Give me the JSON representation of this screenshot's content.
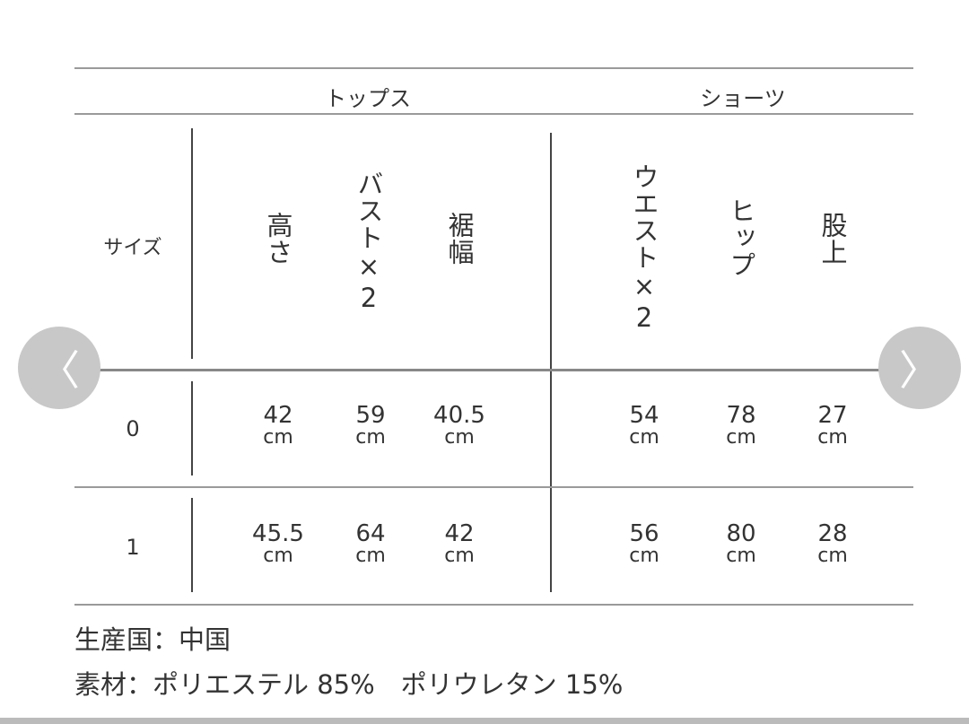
{
  "table": {
    "groups": [
      "トップス",
      "ショーツ"
    ],
    "size_label": "サイズ",
    "columns": [
      "高さ",
      "バスト×2",
      "裾幅",
      "ウエスト×2",
      "ヒップ",
      "股上"
    ],
    "unit": "cm",
    "rows": [
      {
        "size": "0",
        "values": [
          "42",
          "59",
          "40.5",
          "54",
          "78",
          "27"
        ]
      },
      {
        "size": "1",
        "values": [
          "45.5",
          "64",
          "42",
          "56",
          "80",
          "28"
        ]
      }
    ]
  },
  "footer": {
    "origin": "生産国：中国",
    "material": "素材：ポリエステル 85%　ポリウレタン 15%"
  },
  "carousel": {
    "prev_icon": "chevron-left-icon",
    "next_icon": "chevron-right-icon",
    "prev_glyph": "〈",
    "next_glyph": "〉"
  }
}
